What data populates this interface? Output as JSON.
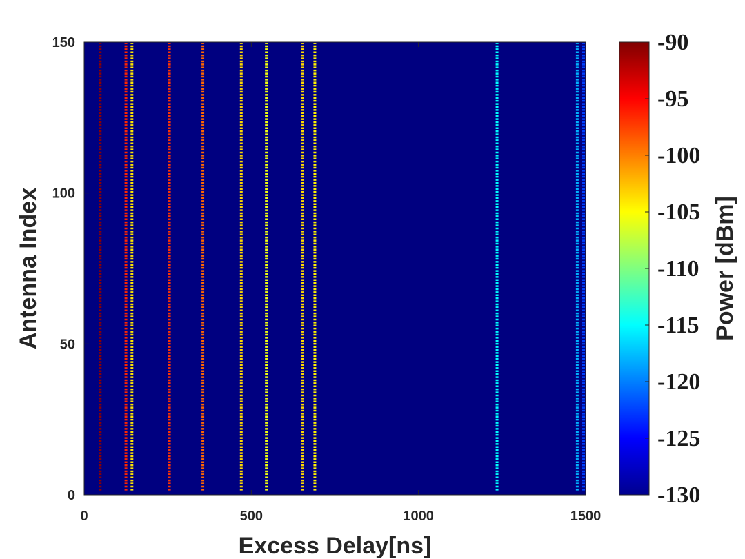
{
  "chart_data": {
    "type": "heatmap",
    "xlabel": "Excess Delay[ns]",
    "ylabel": "Antenna Index",
    "xlim": [
      0,
      1500
    ],
    "ylim": [
      0,
      150
    ],
    "xticks": [
      0,
      500,
      1000,
      1500
    ],
    "yticks": [
      0,
      50,
      100,
      150
    ],
    "colorbar": {
      "label": "Power [dBm]",
      "range": [
        -130,
        -90
      ],
      "ticks": [
        -90,
        -95,
        -100,
        -105,
        -110,
        -115,
        -120,
        -125,
        -130
      ],
      "colormap": "jet"
    },
    "background_power": -130,
    "antenna_range": [
      1,
      150
    ],
    "paths": [
      {
        "delay": 48,
        "power": -90.5
      },
      {
        "delay": 125,
        "power": -96.5
      },
      {
        "delay": 143,
        "power": -104
      },
      {
        "delay": 255,
        "power": -97
      },
      {
        "delay": 355,
        "power": -99
      },
      {
        "delay": 470,
        "power": -103.5
      },
      {
        "delay": 545,
        "power": -105.5
      },
      {
        "delay": 652,
        "power": -103.5
      },
      {
        "delay": 690,
        "power": -104.5
      },
      {
        "delay": 1235,
        "power": -115
      },
      {
        "delay": 1475,
        "power": -118
      },
      {
        "delay": 1508,
        "power": -122.5
      }
    ]
  }
}
